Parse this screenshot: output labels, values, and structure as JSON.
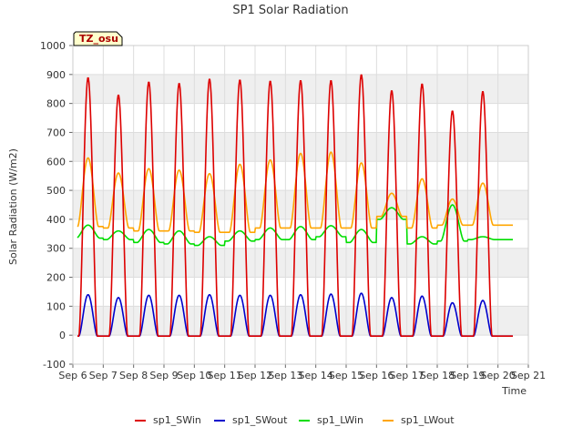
{
  "chart_data": {
    "type": "line",
    "title": "SP1 Solar Radiation",
    "xlabel": "Time",
    "ylabel": "Solar Radiation (W/m2)",
    "ylim": [
      -100,
      1000
    ],
    "xlim": [
      6,
      21
    ],
    "x_ticks": [
      "Sep 6",
      "Sep 7",
      "Sep 8",
      "Sep 9",
      "Sep 10",
      "Sep 11",
      "Sep 12",
      "Sep 13",
      "Sep 14",
      "Sep 15",
      "Sep 16",
      "Sep 17",
      "Sep 18",
      "Sep 19",
      "Sep 20",
      "Sep 21"
    ],
    "y_ticks": [
      -100,
      0,
      100,
      200,
      300,
      400,
      500,
      600,
      700,
      800,
      900,
      1000
    ],
    "grid": true,
    "background_bands": true,
    "legend_position": "bottom",
    "badge": "TZ_osu",
    "colors": {
      "sp1_SWin": "#dd0000",
      "sp1_SWout": "#0000cc",
      "sp1_LWin": "#00dd00",
      "sp1_LWout": "#ffa500"
    },
    "days": [
      7,
      8,
      9,
      10,
      11,
      12,
      13,
      14,
      15,
      16,
      17,
      18,
      19,
      20
    ],
    "series": [
      {
        "name": "sp1_SWin",
        "baseline": -3,
        "daily_peak": [
          890,
          830,
          875,
          870,
          885,
          882,
          878,
          880,
          880,
          900,
          845,
          868,
          775,
          842
        ]
      },
      {
        "name": "sp1_SWout",
        "baseline": -3,
        "daily_peak": [
          140,
          130,
          138,
          138,
          140,
          138,
          138,
          140,
          142,
          145,
          130,
          135,
          112,
          120
        ]
      },
      {
        "name": "sp1_LWin",
        "night_level": [
          335,
          330,
          320,
          315,
          310,
          325,
          330,
          330,
          340,
          320,
          400,
          315,
          325,
          330
        ],
        "daily_peak": [
          380,
          360,
          365,
          360,
          340,
          360,
          370,
          375,
          378,
          365,
          440,
          340,
          450,
          340
        ]
      },
      {
        "name": "sp1_LWout",
        "night_level": [
          375,
          370,
          360,
          360,
          355,
          355,
          370,
          370,
          370,
          370,
          410,
          370,
          380,
          380
        ],
        "daily_peak": [
          612,
          560,
          575,
          570,
          558,
          590,
          605,
          628,
          632,
          595,
          490,
          540,
          470,
          525
        ]
      }
    ]
  }
}
